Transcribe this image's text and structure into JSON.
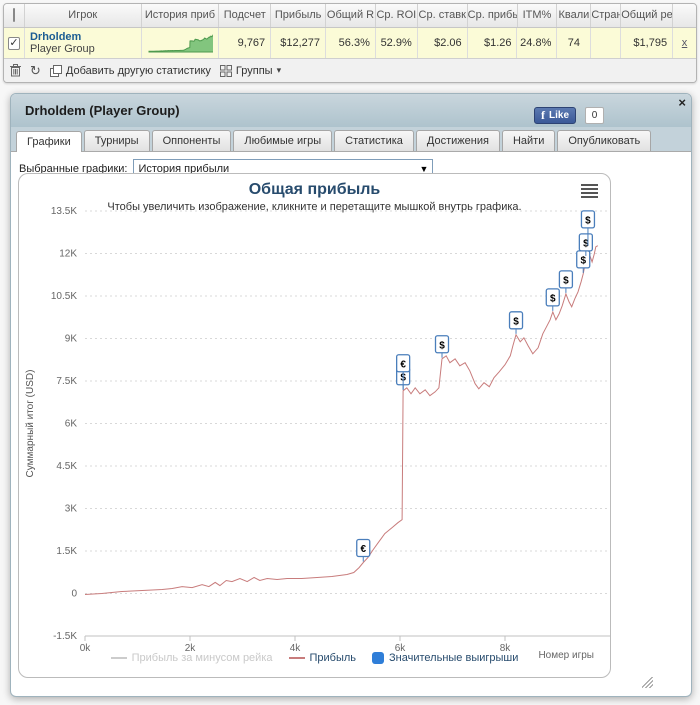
{
  "icons": {
    "check": "✓",
    "close": "×",
    "select_arrow": "▼",
    "groups_arrow": "▾",
    "refresh": "↻"
  },
  "table": {
    "headers": [
      "Игрок",
      "История приб",
      "Подсчет",
      "Прибыль",
      "Общий R",
      "Ср. ROI",
      "Ср. ставк",
      "Ср. прибы",
      "ITM%",
      "Квали",
      "Стран",
      "Общий ре"
    ],
    "row": {
      "player": "Drholdem",
      "subtitle": "Player Group",
      "count": "9,767",
      "profit": "$12,277",
      "total_r": "56.3%",
      "avg_roi": "52.9%",
      "avg_stake": "$2.06",
      "avg_profit": "$1.26",
      "itm": "24.8%",
      "quali": "74",
      "country": "",
      "total_rake": "$1,795",
      "remove": "x"
    },
    "toolbar": {
      "add_stat": "Добавить другую статистику",
      "groups": "Группы"
    }
  },
  "panel": {
    "title": "Drholdem (Player Group)",
    "like": {
      "label": "Like",
      "count": "0"
    },
    "tabs": [
      {
        "label": "Графики",
        "active": true
      },
      {
        "label": "Турниры",
        "active": false
      },
      {
        "label": "Оппоненты",
        "active": false
      },
      {
        "label": "Любимые игры",
        "active": false
      },
      {
        "label": "Статистика",
        "active": false
      },
      {
        "label": "Достижения",
        "active": false
      },
      {
        "label": "Найти",
        "active": false
      },
      {
        "label": "Опубликовать",
        "active": false
      }
    ],
    "chart_select": {
      "label": "Выбранные графики:",
      "value": "История прибыли"
    }
  },
  "chart_data": {
    "type": "line",
    "title": "Общая прибыль",
    "subtitle": "Чтобы увеличить изображение, кликните и перетащите мышкой внутрь графика.",
    "ylabel": "Суммарный итог (USD)",
    "xlabel": "Номер игры",
    "xlim": [
      0,
      10000
    ],
    "ylim": [
      -1500,
      13500
    ],
    "x_ticks": [
      "0k",
      "2k",
      "4k",
      "6k",
      "8k"
    ],
    "x_tick_values": [
      0,
      2000,
      4000,
      6000,
      8000
    ],
    "y_ticks": [
      "-1.5K",
      "0",
      "1.5K",
      "3K",
      "4.5K",
      "6K",
      "7.5K",
      "9K",
      "10.5K",
      "12K",
      "13.5K"
    ],
    "y_tick_values": [
      -1500,
      0,
      1500,
      3000,
      4500,
      6000,
      7500,
      9000,
      10500,
      12000,
      13500
    ],
    "grid": "dotted-horizontal",
    "legend_position": "bottom",
    "series": [
      {
        "name": "Прибыль за минусом рейка",
        "visible": false,
        "color": "#cccccc"
      },
      {
        "name": "Прибыль",
        "visible": true,
        "color": "#c87c7c",
        "points": [
          [
            0,
            -35
          ],
          [
            320,
            0
          ],
          [
            700,
            70
          ],
          [
            1090,
            105
          ],
          [
            1470,
            140
          ],
          [
            1660,
            175
          ],
          [
            1850,
            245
          ],
          [
            2040,
            210
          ],
          [
            2230,
            315
          ],
          [
            2360,
            245
          ],
          [
            2480,
            390
          ],
          [
            2570,
            280
          ],
          [
            2690,
            460
          ],
          [
            2800,
            420
          ],
          [
            2950,
            530
          ],
          [
            3090,
            420
          ],
          [
            3220,
            565
          ],
          [
            3330,
            460
          ],
          [
            3470,
            530
          ],
          [
            3660,
            495
          ],
          [
            3850,
            530
          ],
          [
            4130,
            530
          ],
          [
            4420,
            565
          ],
          [
            4700,
            600
          ],
          [
            4990,
            670
          ],
          [
            5120,
            740
          ],
          [
            5220,
            915
          ],
          [
            5300,
            1093
          ],
          [
            5390,
            1270
          ],
          [
            5490,
            1550
          ],
          [
            5600,
            1830
          ],
          [
            5710,
            2115
          ],
          [
            5850,
            2325
          ],
          [
            5960,
            2500
          ],
          [
            6040,
            2610
          ],
          [
            6060,
            7155
          ],
          [
            6130,
            7260
          ],
          [
            6210,
            7050
          ],
          [
            6290,
            7260
          ],
          [
            6380,
            7050
          ],
          [
            6480,
            7190
          ],
          [
            6570,
            6980
          ],
          [
            6670,
            7120
          ],
          [
            6740,
            7260
          ],
          [
            6800,
            8285
          ],
          [
            6880,
            8390
          ],
          [
            6950,
            8145
          ],
          [
            7050,
            8285
          ],
          [
            7140,
            8035
          ],
          [
            7240,
            8145
          ],
          [
            7330,
            7860
          ],
          [
            7430,
            7405
          ],
          [
            7500,
            7225
          ],
          [
            7600,
            7440
          ],
          [
            7700,
            7300
          ],
          [
            7790,
            7615
          ],
          [
            7890,
            7825
          ],
          [
            8000,
            8075
          ],
          [
            8100,
            8390
          ],
          [
            8150,
            8745
          ],
          [
            8210,
            9130
          ],
          [
            8290,
            8885
          ],
          [
            8360,
            9025
          ],
          [
            8440,
            8745
          ],
          [
            8530,
            8460
          ],
          [
            8630,
            8670
          ],
          [
            8720,
            9165
          ],
          [
            8800,
            9450
          ],
          [
            8860,
            9660
          ],
          [
            8910,
            9940
          ],
          [
            8970,
            9660
          ],
          [
            9030,
            9870
          ],
          [
            9090,
            10155
          ],
          [
            9160,
            10575
          ],
          [
            9220,
            10295
          ],
          [
            9270,
            10120
          ],
          [
            9330,
            10400
          ],
          [
            9390,
            10645
          ],
          [
            9450,
            11000
          ],
          [
            9490,
            11280
          ],
          [
            9520,
            11565
          ],
          [
            9540,
            11880
          ],
          [
            9580,
            12235
          ],
          [
            9620,
            11915
          ],
          [
            9660,
            11705
          ],
          [
            9700,
            11985
          ],
          [
            9730,
            12235
          ],
          [
            9767,
            12277
          ]
        ]
      },
      {
        "name": "Значительные выигрыши",
        "type": "flags",
        "visible": true,
        "color": "#2f7ed8",
        "border": "#4a7ebb",
        "flags": [
          {
            "x": 5300,
            "y": 1093,
            "label": "€",
            "lift": 0
          },
          {
            "x": 6060,
            "y": 7155,
            "label": "$",
            "lift": 0
          },
          {
            "x": 6060,
            "y": 7155,
            "label": "€",
            "lift": 1
          },
          {
            "x": 6800,
            "y": 8285,
            "label": "$",
            "lift": 0
          },
          {
            "x": 8210,
            "y": 9130,
            "label": "$",
            "lift": 0
          },
          {
            "x": 8910,
            "y": 9940,
            "label": "$",
            "lift": 0
          },
          {
            "x": 9160,
            "y": 10575,
            "label": "$",
            "lift": 0
          },
          {
            "x": 9490,
            "y": 11280,
            "label": "$",
            "lift": 0
          },
          {
            "x": 9540,
            "y": 11880,
            "label": "$",
            "lift": 0
          },
          {
            "x": 9580,
            "y": 12235,
            "label": "$",
            "lift": 1
          }
        ]
      }
    ]
  }
}
